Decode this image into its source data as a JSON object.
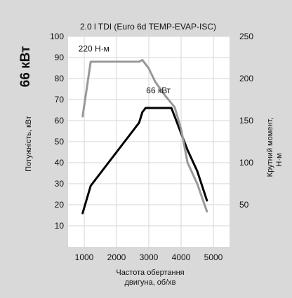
{
  "chart_data": {
    "type": "line",
    "title": "2.0 l TDI (Euro 6d TEMP-EVAP-ISC)",
    "big_label": "66 кВт",
    "xlabel_lines": [
      "Частота обертання",
      "двигуна, об/хв"
    ],
    "ylabel_left": "Потужність, кВт",
    "ylabel_right_lines": [
      "Крутний момент,",
      "Н·м"
    ],
    "x_ticks": [
      1000,
      2000,
      3000,
      4000,
      5000
    ],
    "y_left_ticks": [
      10,
      20,
      30,
      40,
      50,
      60,
      70,
      80,
      90,
      100
    ],
    "y_right_ticks": [
      50,
      100,
      150,
      200,
      250
    ],
    "xlim": [
      500,
      5500
    ],
    "y_left_lim": [
      0,
      100
    ],
    "y_right_lim": [
      0,
      250
    ],
    "grid": true,
    "colors": {
      "background": "#d9d9d9",
      "plot_area": "#ffffff",
      "grid": "#d6d6d6",
      "power": "#000000",
      "torque": "#999999",
      "text": "#111111"
    },
    "series": [
      {
        "name": "",
        "axis": "left",
        "color": "#000000",
        "x": [
          950,
          1200,
          1600,
          2000,
          2400,
          2700,
          2800,
          2900,
          3300,
          3700,
          3900,
          4200,
          4500,
          4800
        ],
        "y": [
          16,
          29,
          37,
          45,
          53,
          59,
          64,
          66,
          66,
          66,
          58,
          46,
          36,
          22
        ]
      },
      {
        "name": "",
        "axis": "right",
        "color": "#999999",
        "x": [
          950,
          1200,
          1500,
          2000,
          2500,
          2700,
          2800,
          3000,
          3200,
          3500,
          3800,
          4000,
          4200,
          4500,
          4800
        ],
        "y": [
          155,
          220,
          220,
          220,
          220,
          220,
          222,
          212,
          196,
          180,
          166,
          140,
          100,
          75,
          42
        ]
      }
    ],
    "annotations": [
      {
        "text": "66 кВт",
        "x": 3300,
        "y": 73,
        "axis": "left"
      },
      {
        "text": "220 Н·м",
        "x": 1300,
        "y": 232,
        "axis": "right"
      }
    ]
  }
}
